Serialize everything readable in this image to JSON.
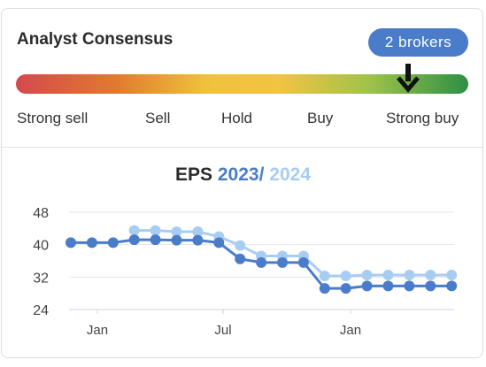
{
  "consensus": {
    "title": "Analyst Consensus",
    "brokers_label": "2  brokers",
    "gauge_position": 0.865,
    "scale": [
      "Strong sell",
      "Sell",
      "Hold",
      "Buy",
      "Strong buy"
    ]
  },
  "eps": {
    "title_prefix": "EPS",
    "year_a": "2023",
    "separator": "/",
    "year_b": "2024"
  },
  "colors": {
    "series_2023": "#4a7cc9",
    "series_2024": "#a8cdf2",
    "pill": "#4a7cc9"
  },
  "chart_data": {
    "type": "line",
    "yticks": [
      "48",
      "40",
      "32",
      "24"
    ],
    "ylim": [
      24,
      48
    ],
    "xticks": [
      "Jan",
      "Jul",
      "Jan"
    ],
    "grid": true,
    "series": [
      {
        "name": "2023",
        "values": [
          40.5,
          40.5,
          40.5,
          41.2,
          41.2,
          41.1,
          41.1,
          40.5,
          36.5,
          35.6,
          35.6,
          35.6,
          29.2,
          29.2,
          29.8,
          29.8,
          29.8,
          29.8,
          29.8
        ]
      },
      {
        "name": "2024",
        "values": [
          null,
          null,
          null,
          43.5,
          43.5,
          43.2,
          43.2,
          42.0,
          39.8,
          37.2,
          37.2,
          37.2,
          32.3,
          32.3,
          32.5,
          32.5,
          32.5,
          32.5,
          32.5
        ]
      }
    ]
  }
}
